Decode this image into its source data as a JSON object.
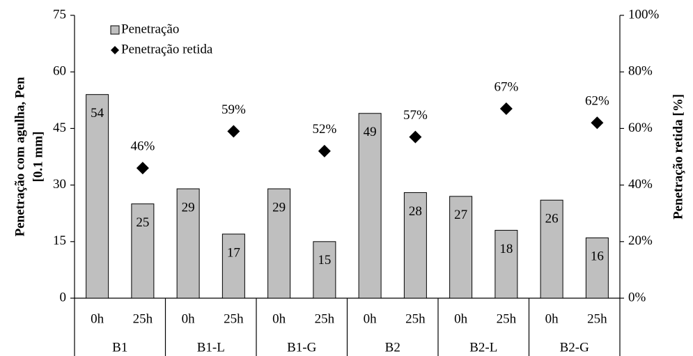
{
  "chart_data": {
    "type": "bar",
    "categories": [
      "0h",
      "25h",
      "0h",
      "25h",
      "0h",
      "25h",
      "0h",
      "25h",
      "0h",
      "25h",
      "0h",
      "25h"
    ],
    "groups": [
      "B1",
      "B1-L",
      "B1-G",
      "B2",
      "B2-L",
      "B2-G"
    ],
    "series": [
      {
        "name": "Penetração",
        "color": "#bfbfbf",
        "values": [
          54,
          25,
          29,
          17,
          29,
          15,
          49,
          28,
          27,
          18,
          26,
          16
        ]
      },
      {
        "name": "Penetração retida",
        "color": "#000000",
        "axis": "y2",
        "values": [
          null,
          46,
          null,
          59,
          null,
          52,
          null,
          57,
          null,
          67,
          null,
          62
        ],
        "value_labels": [
          null,
          "46%",
          null,
          "59%",
          null,
          "52%",
          null,
          "57%",
          null,
          "67%",
          null,
          "62%"
        ]
      }
    ],
    "ylabel": [
      "Penetração com agulha, Pen",
      "[0.1 mm]"
    ],
    "y2label": "Penetração retida [%]",
    "ylim": [
      0,
      75
    ],
    "yticks": [
      0,
      15,
      30,
      45,
      60,
      75
    ],
    "y2lim": [
      0,
      100
    ],
    "y2ticks": [
      {
        "value": 0,
        "label": "0%"
      },
      {
        "value": 20,
        "label": "20%"
      },
      {
        "value": 40,
        "label": "40%"
      },
      {
        "value": 60,
        "label": "60%"
      },
      {
        "value": 80,
        "label": "80%"
      },
      {
        "value": 100,
        "label": "100%"
      }
    ],
    "legend": "top-left"
  }
}
